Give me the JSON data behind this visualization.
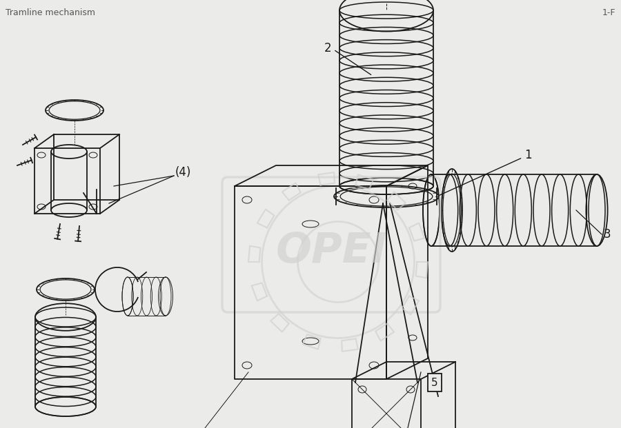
{
  "title": "Tramline mechanism",
  "subtitle": "1-F",
  "bg_color": "#ebebea",
  "line_color": "#1a1a1a",
  "watermark_text": "OPEI",
  "watermark_color": "#d0d0ce",
  "figsize": [
    9.0,
    6.21
  ],
  "dpi": 100,
  "lw_main": 1.3,
  "lw_thick": 2.0,
  "lw_thin": 0.7
}
